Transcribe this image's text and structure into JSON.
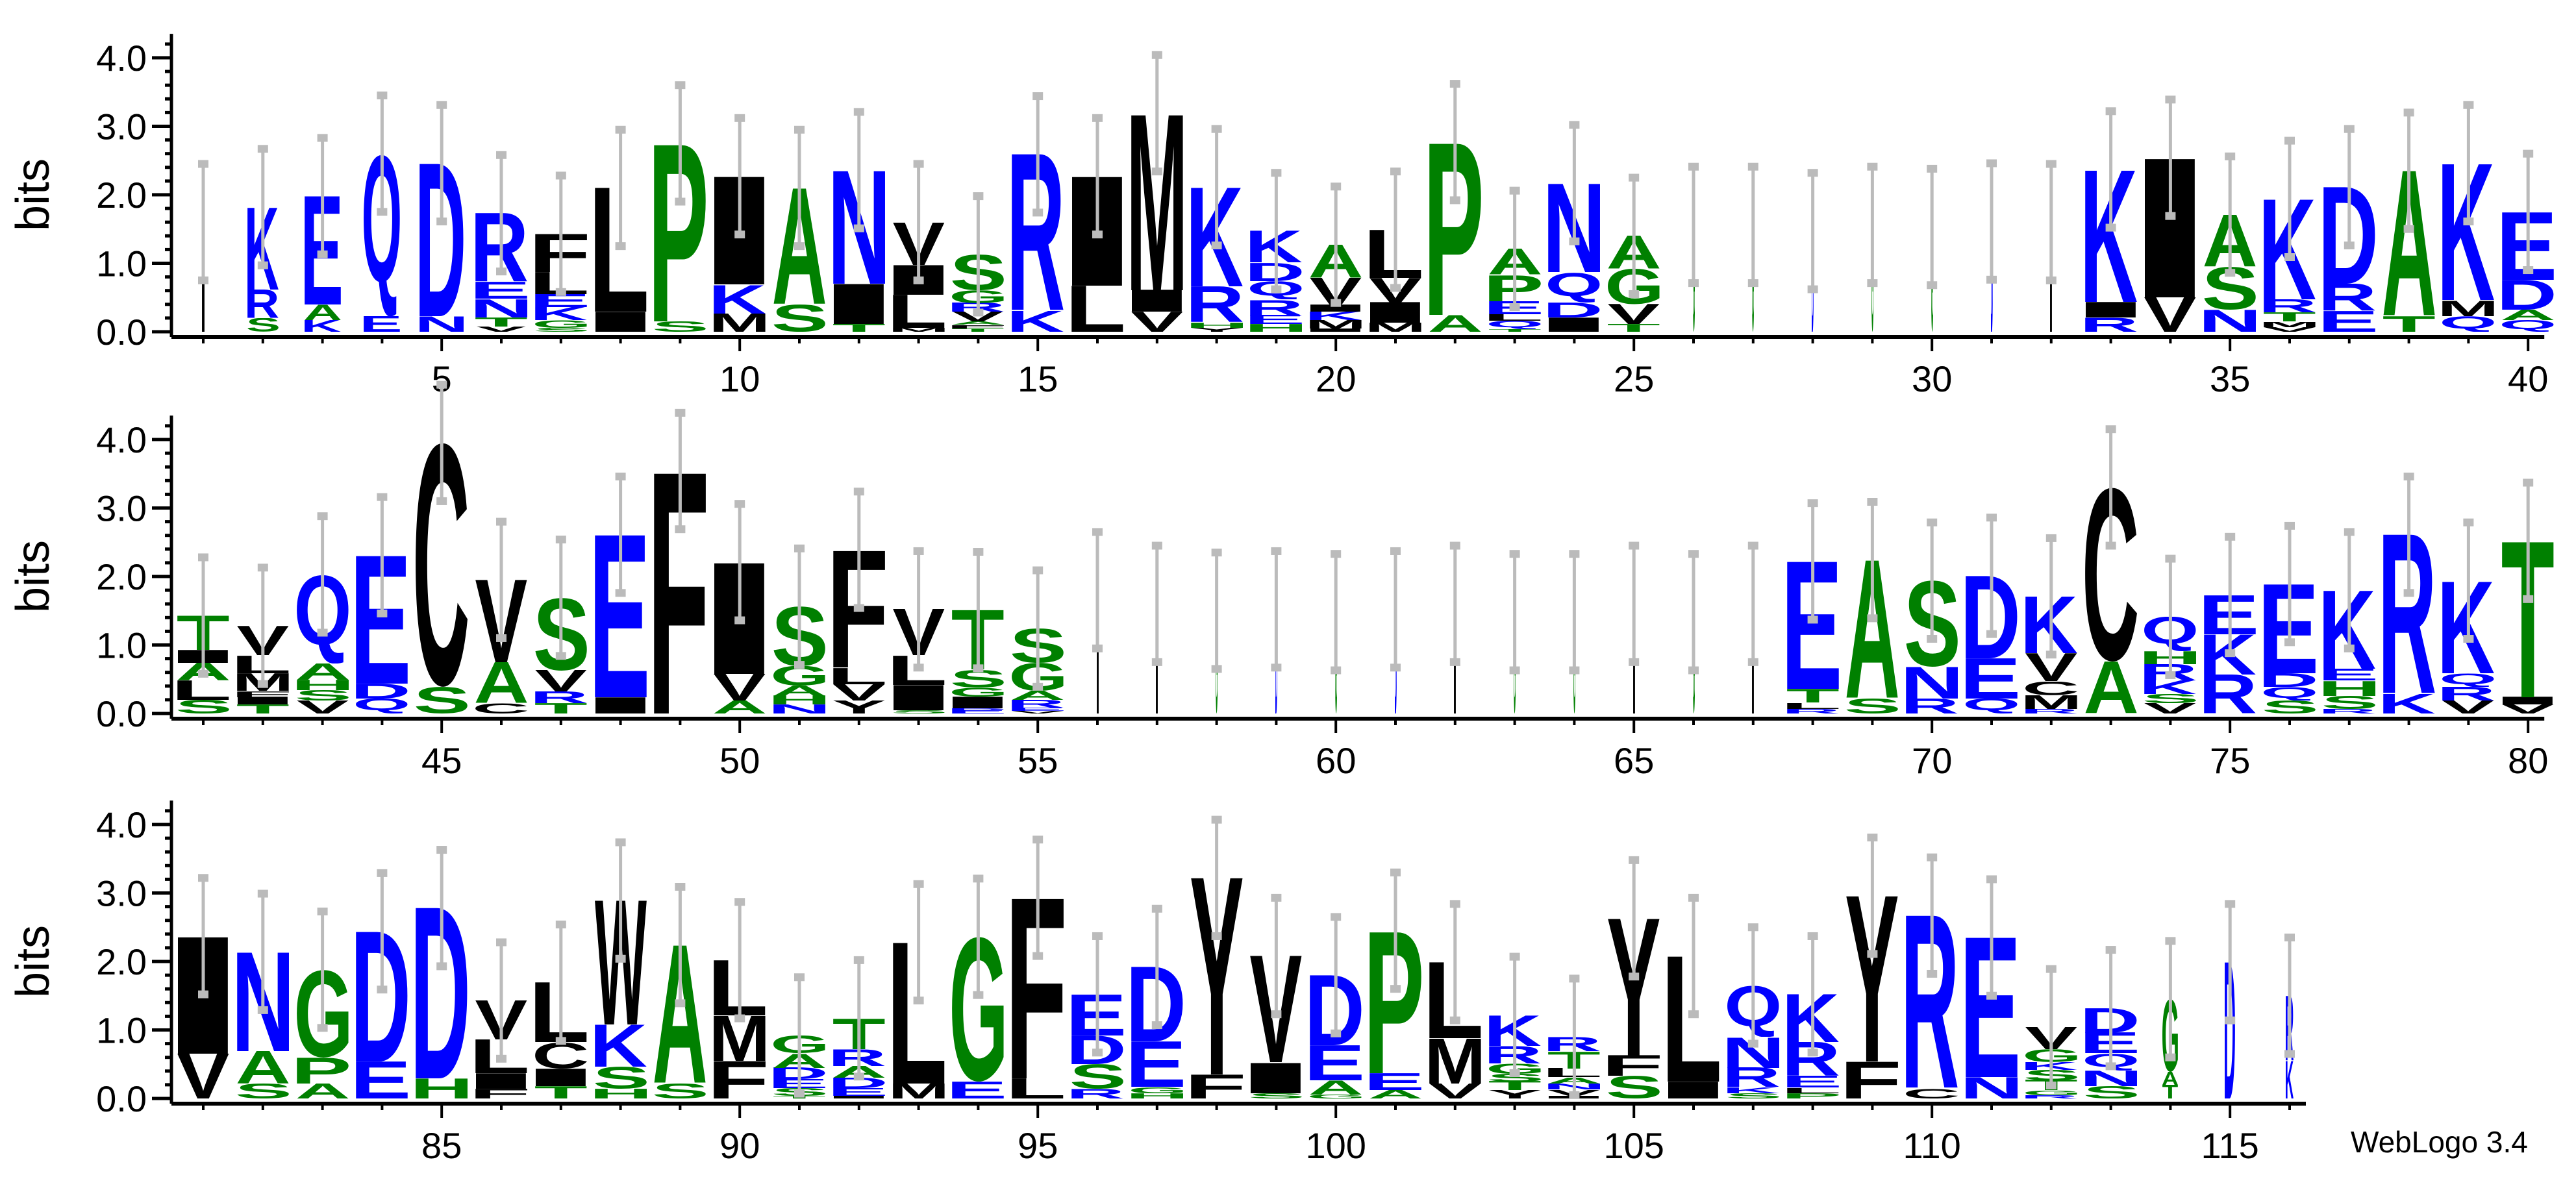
{
  "chart_data": {
    "type": "sequence-logo",
    "ylabel": "bits",
    "yticks": [
      "0.0",
      "1.0",
      "2.0",
      "3.0",
      "4.0"
    ],
    "ylim": [
      0,
      4.3
    ],
    "xlim": [
      1,
      116
    ],
    "x_tick_every": 5,
    "rows": [
      [
        1,
        40
      ],
      [
        41,
        80
      ],
      [
        81,
        116
      ]
    ],
    "footer": "WebLogo 3.4",
    "colors": {
      "blue": "#0000ff",
      "green": "#008000",
      "black": "#000000",
      "errorbar": "#bbbbbb"
    },
    "color_groups": {
      "blue": "KRDENQ",
      "green": "SGTAPH",
      "black": "ILMFVWYC"
    },
    "error_bar_halfwidth_bits": 0.85,
    "stack_format": "letters from bottom to top, each followed by its height in bits",
    "positions": [
      {
        "n": 1,
        "w": 0.05,
        "s": "I1.6"
      },
      {
        "n": 2,
        "w": 0.6,
        "s": "S.2 R.42 K1.2"
      },
      {
        "n": 3,
        "w": 0.7,
        "s": "K.17 A.23 E1.58"
      },
      {
        "n": 4,
        "w": 0.7,
        "s": "E.23 Q2.37"
      },
      {
        "n": 5,
        "w": 0.85,
        "s": "N.23 D2.23"
      },
      {
        "n": 6,
        "w": 1,
        "s": "V.08 T.13 N.27 E.25 R1.0"
      },
      {
        "n": 7,
        "w": 1,
        "s": "S.06 G.11 K.19 E.19 L.32 F.56"
      },
      {
        "n": 8,
        "w": 1,
        "s": "I.29 L1.81"
      },
      {
        "n": 9,
        "w": 1,
        "s": "S.15 P2.6"
      },
      {
        "n": 10,
        "w": 1,
        "s": "M.27 K.42 I1.58"
      },
      {
        "n": 11,
        "w": 1,
        "s": "S.4 A1.7"
      },
      {
        "n": 12,
        "w": 1,
        "s": "T.11 I.59 N1.66"
      },
      {
        "n": 13,
        "w": 1,
        "s": "M.06 L.48 I.44 V.62"
      },
      {
        "n": 14,
        "w": 1,
        "s": "T.05 F.05 A.05 V.14 R.13 G.19 S.52"
      },
      {
        "n": 15,
        "w": 1,
        "s": "K.3 R2.29"
      },
      {
        "n": 16,
        "w": 1,
        "s": "L.67 I1.6"
      },
      {
        "n": 17,
        "w": 1,
        "s": "V.29 I.32 M2.58"
      },
      {
        "n": 18,
        "w": 1,
        "s": "Y.06 H.08 R.52 K1.45"
      },
      {
        "n": 19,
        "w": 1,
        "s": "H.11 E.13 R.23 Q.27 D.27 K.46"
      },
      {
        "n": 20,
        "w": 1,
        "s": "I.05 M.12 K.12 I.1 V.4 A.48"
      },
      {
        "n": 21,
        "w": 1,
        "s": "M.13 I.3 V.36 L.7"
      },
      {
        "n": 22,
        "w": 1,
        "s": "A.25 P2.52"
      },
      {
        "n": 23,
        "w": 1,
        "s": "T.04 Q.12 L.1 E.19 P.38 A.38"
      },
      {
        "n": 24,
        "w": 1,
        "s": "I.21 D.22 Q.44 N1.3"
      },
      {
        "n": 25,
        "w": 1,
        "s": "T.11 V.29 G.52 A.48"
      },
      {
        "n": 26,
        "w": 0.04,
        "s": "G1.56"
      },
      {
        "n": 27,
        "w": 0.04,
        "s": "G1.56"
      },
      {
        "n": 28,
        "w": 0.04,
        "s": "D1.47"
      },
      {
        "n": 29,
        "w": 0.04,
        "s": "G1.56"
      },
      {
        "n": 30,
        "w": 0.04,
        "s": "G1.53"
      },
      {
        "n": 31,
        "w": 0.04,
        "s": "D1.61"
      },
      {
        "n": 32,
        "w": 0.04,
        "s": "I1.6"
      },
      {
        "n": 33,
        "w": 1,
        "s": "R.21 I.23 K1.93"
      },
      {
        "n": 34,
        "w": 1,
        "s": "V.5 I2.04"
      },
      {
        "n": 35,
        "w": 1,
        "s": "N.32 S.63 A.76"
      },
      {
        "n": 36,
        "w": 1,
        "s": "V.07 M.08 T.13 R.19 K1.47"
      },
      {
        "n": 37,
        "w": 1,
        "s": "E.3 R.4 D1.41"
      },
      {
        "n": 38,
        "w": 1,
        "s": "T.23 A2.12"
      },
      {
        "n": 39,
        "w": 1,
        "s": "Q.23 M.23 K2.0"
      },
      {
        "n": 40,
        "w": 1,
        "s": "Q.17 A.15 D.44 E.99"
      },
      {
        "n": 41,
        "w": 1,
        "s": "S.2 L.28 A.26 I.19 T.5"
      },
      {
        "n": 42,
        "w": 1,
        "s": "T.13 I.11 F.09 M.26 L.26 V.43"
      },
      {
        "n": 43,
        "w": 1,
        "s": "V.19 S.15 H.15 A.24 Q1.3"
      },
      {
        "n": 44,
        "w": 1,
        "s": "Q.22 D.22 E1.87"
      },
      {
        "n": 45,
        "w": 1,
        "s": "S.39 C3.56"
      },
      {
        "n": 46,
        "w": 1,
        "s": "C.15 A.6 V1.2"
      },
      {
        "n": 47,
        "w": 1,
        "s": "T.15 R.17 V.31 S1.06"
      },
      {
        "n": 48,
        "w": 1,
        "s": "I.24 E2.37"
      },
      {
        "n": 49,
        "w": 1,
        "s": "F3.54"
      },
      {
        "n": 50,
        "w": 1,
        "s": "A.19 V.39 I1.63"
      },
      {
        "n": 51,
        "w": 1,
        "s": "N.13 H.13 A.15 G.28 S.87"
      },
      {
        "n": 52,
        "w": 1,
        "s": "Y.19 V.24 L.24 F1.72"
      },
      {
        "n": 53,
        "w": 1,
        "s": "S.05 I.37 L.43 V.67"
      },
      {
        "n": 54,
        "w": 1,
        "s": "E.05 D.03 I.17 G.13 S.26 T.87"
      },
      {
        "n": 55,
        "w": 1,
        "s": "V.04 E.05 R.11 A.13 G.41 S.5"
      },
      {
        "n": 56,
        "w": 0.04,
        "s": "I1.8"
      },
      {
        "n": 57,
        "w": 0.04,
        "s": "I1.6"
      },
      {
        "n": 58,
        "w": 0.04,
        "s": "G1.5"
      },
      {
        "n": 59,
        "w": 0.04,
        "s": "D1.52"
      },
      {
        "n": 60,
        "w": 0.04,
        "s": "G1.48"
      },
      {
        "n": 61,
        "w": 0.04,
        "s": "D1.52"
      },
      {
        "n": 62,
        "w": 0.04,
        "s": "I1.6"
      },
      {
        "n": 63,
        "w": 0.04,
        "s": "G1.48"
      },
      {
        "n": 64,
        "w": 0.04,
        "s": "G1.48"
      },
      {
        "n": 65,
        "w": 0.04,
        "s": "I1.6"
      },
      {
        "n": 66,
        "w": 0.04,
        "s": "G1.48"
      },
      {
        "n": 67,
        "w": 0.04,
        "s": "I1.6"
      },
      {
        "n": 68,
        "w": 1,
        "s": "R.07 L.09 T.2 E1.86"
      },
      {
        "n": 69,
        "w": 1,
        "s": "S.22 A2.02"
      },
      {
        "n": 70,
        "w": 1,
        "s": "R.22 N.46 S1.26"
      },
      {
        "n": 71,
        "w": 1,
        "s": "Q.22 E.59 D1.2"
      },
      {
        "n": 72,
        "w": 1,
        "s": "R.07 M.2 C.2 V.41 K.83"
      },
      {
        "n": 73,
        "w": 1,
        "s": "A.76 C2.54"
      },
      {
        "n": 74,
        "w": 1,
        "s": "V.15 S.13 K.2 R.24 H.19 Q.5"
      },
      {
        "n": 75,
        "w": 1,
        "s": "R.57 K.59 E.57"
      },
      {
        "n": 76,
        "w": 1,
        "s": "S.19 Q.2 D.2 E1.3"
      },
      {
        "n": 77,
        "w": 1,
        "s": "R.07 S.19 H.22 E.17 K1.15"
      },
      {
        "n": 78,
        "w": 1,
        "s": "K.28 R2.33"
      },
      {
        "n": 79,
        "w": 1,
        "s": "V.19 R.2 Q.2 K1.35"
      },
      {
        "n": 80,
        "w": 1,
        "s": "V.13 I.11 T2.28"
      },
      {
        "n": 81,
        "w": 1,
        "s": "V.65 I1.72"
      },
      {
        "n": 82,
        "w": 1,
        "s": "S.22 A.47 N1.45"
      },
      {
        "n": 83,
        "w": 1,
        "s": "A.22 P.38 G1.28"
      },
      {
        "n": 84,
        "w": 1,
        "s": "E.54 D1.9"
      },
      {
        "n": 85,
        "w": 1,
        "s": "H.29 D2.49"
      },
      {
        "n": 86,
        "w": 1,
        "s": "F.14 I.23 L.49 V.57"
      },
      {
        "n": 87,
        "w": 1,
        "s": "T.18 I.26 C.38 L.87"
      },
      {
        "n": 88,
        "w": 1,
        "s": "H.14 S.32 K.62 W1.81"
      },
      {
        "n": 89,
        "w": 1,
        "s": "S.22 A2.02"
      },
      {
        "n": 90,
        "w": 1,
        "s": "F.55 M.66 L.81"
      },
      {
        "n": 91,
        "w": 1,
        "s": "T.04 S.11 E.13 D.17 A.21 G.26"
      },
      {
        "n": 92,
        "w": 1,
        "s": "I.04 E.11 D.15 A.17 R.25 T.45"
      },
      {
        "n": 93,
        "w": 1,
        "s": "M.22 L2.06"
      },
      {
        "n": 94,
        "w": 1,
        "s": "E.25 G2.11"
      },
      {
        "n": 95,
        "w": 1,
        "s": "L.29 F2.64"
      },
      {
        "n": 96,
        "w": 1,
        "s": "R.14 S.36 D.42 E.6"
      },
      {
        "n": 97,
        "w": 1,
        "s": "H.08 G.09 E.66 D1.09"
      },
      {
        "n": 98,
        "w": 1,
        "s": "F.35 Y2.87"
      },
      {
        "n": 99,
        "w": 1,
        "s": "S.08 I.45 V1.55"
      },
      {
        "n": 100,
        "w": 1,
        "s": "G.06 A.21 E.51 D1.02"
      },
      {
        "n": 101,
        "w": 1,
        "s": "A.12 E.25 P2.08"
      },
      {
        "n": 102,
        "w": 1,
        "s": "V.22 M.66 L1.11"
      },
      {
        "n": 103,
        "w": 1,
        "s": "Y.12 T.13 S.11 G.15 R.26 K.45"
      },
      {
        "n": 104,
        "w": 1,
        "s": "I.04 V.09 N.09 A.09 L.13 T.25 R.21"
      },
      {
        "n": 105,
        "w": 1,
        "s": "S.33 F.3 Y2.0"
      },
      {
        "n": 106,
        "w": 1,
        "s": "I.25 L1.83"
      },
      {
        "n": 107,
        "w": 1,
        "s": "S.08 K.09 R.28 N.45 Q.75"
      },
      {
        "n": 108,
        "w": 1,
        "s": "P.08 L.08 E.17 R.49 K.7"
      },
      {
        "n": 109,
        "w": 1,
        "s": "F.54 Y2.42"
      },
      {
        "n": 110,
        "w": 1,
        "s": "C.14 R2.53"
      },
      {
        "n": 111,
        "w": 1,
        "s": "N.31 E2.04"
      },
      {
        "n": 112,
        "w": 1,
        "s": "R.05 G.07 T.15 S.15 K.11 G.19 V.32"
      },
      {
        "n": 113,
        "w": 1,
        "s": "S.18 N.23 Q.25 E.3 D.36"
      },
      {
        "n": 114,
        "w": 0.3,
        "s": "T.2 A.19 G1.06"
      },
      {
        "n": 115,
        "w": 0.2,
        "s": "D1.99"
      },
      {
        "n": 116,
        "w": 0.15,
        "s": "K.55 R.95"
      }
    ]
  }
}
